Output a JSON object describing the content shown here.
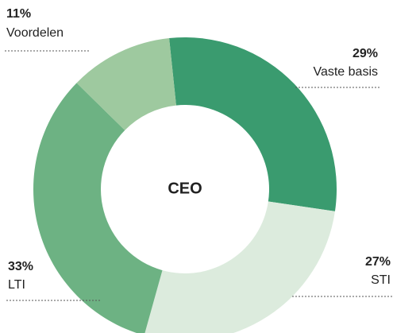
{
  "chart_data": {
    "type": "donut",
    "title": "CEO",
    "categories": [
      "Vaste basis",
      "STI",
      "LTI",
      "Voordelen"
    ],
    "values": [
      29,
      27,
      33,
      11
    ],
    "value_labels": [
      "29%",
      "27%",
      "33%",
      "11%"
    ],
    "colors": [
      "#3a9b6f",
      "#dcebdd",
      "#6db283",
      "#9ec99f"
    ]
  }
}
